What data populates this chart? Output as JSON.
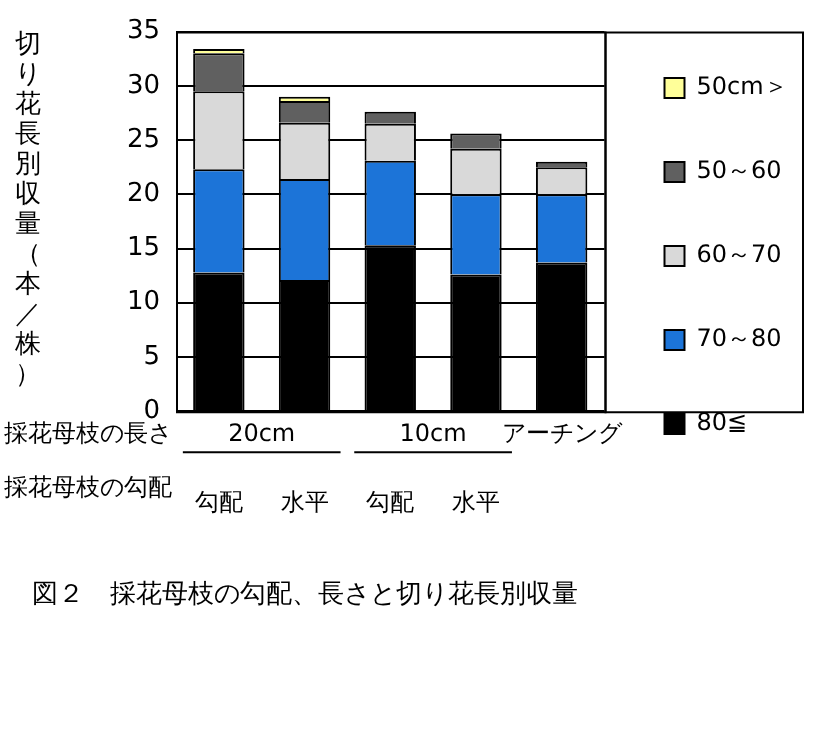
{
  "chart_data": {
    "type": "bar",
    "stacked": true,
    "title": "図２　採花母枝の勾配、長さと切り花長別収量",
    "ylabel": "切り花長別収量（本／株）",
    "categories": [
      "勾配",
      "水平",
      "勾配",
      "水平",
      null
    ],
    "series": [
      {
        "name": "80≦",
        "color": "#000000",
        "values": [
          12.8,
          12.1,
          15.3,
          12.6,
          13.7
        ]
      },
      {
        "name": "70～80",
        "color": "#1c74d8",
        "values": [
          9.5,
          9.3,
          7.8,
          7.4,
          6.3
        ]
      },
      {
        "name": "60～70",
        "color": "#d9d9d9",
        "values": [
          7.2,
          5.2,
          3.4,
          4.2,
          2.5
        ]
      },
      {
        "name": "50～60",
        "color": "#606060",
        "values": [
          3.5,
          2.0,
          1.1,
          1.4,
          0.5
        ]
      },
      {
        "name": "50cm＞",
        "color": "#ffff99",
        "values": [
          0.4,
          0.4,
          0,
          0,
          0
        ]
      }
    ],
    "ylim": [
      0,
      35
    ],
    "yticks": [
      0,
      5,
      10,
      15,
      20,
      25,
      30,
      35
    ],
    "grid": "y",
    "legend": "right",
    "annotations": [
      "採花母枝の長さ",
      "20cm",
      "10cm",
      "アーチング",
      "採花母枝の勾配"
    ]
  }
}
